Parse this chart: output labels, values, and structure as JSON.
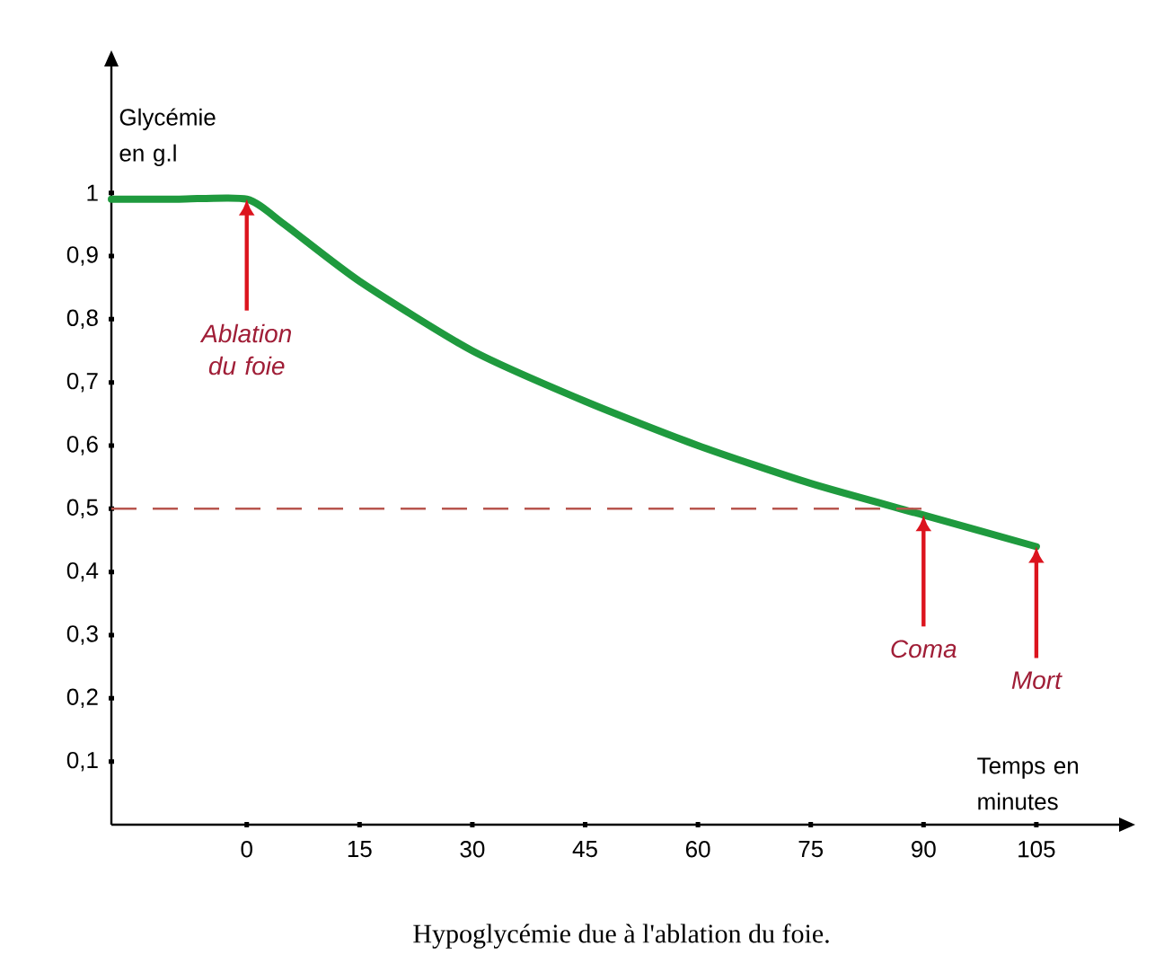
{
  "chart_data": {
    "type": "line",
    "title": "Hypoglycémie due à l'ablation du foie.",
    "xlabel": "Temps en minutes",
    "ylabel": "Glycémie en g.l",
    "x": [
      -18,
      -9,
      0,
      5,
      15,
      30,
      45,
      60,
      75,
      90,
      105
    ],
    "series": [
      {
        "color": "#1f9a3e",
        "values": [
          0.99,
          0.99,
          0.99,
          0.95,
          0.86,
          0.75,
          0.67,
          0.6,
          0.54,
          0.49,
          0.44
        ]
      }
    ],
    "xlim": [
      -18,
      116
    ],
    "ylim": [
      0,
      1.2
    ],
    "xticks": [
      0,
      15,
      30,
      45,
      60,
      75,
      90,
      105
    ],
    "yticks": [
      {
        "value": 0.1,
        "label": "0,1"
      },
      {
        "value": 0.2,
        "label": "0,2"
      },
      {
        "value": 0.3,
        "label": "0,3"
      },
      {
        "value": 0.4,
        "label": "0,4"
      },
      {
        "value": 0.5,
        "label": "0,5"
      },
      {
        "value": 0.6,
        "label": "0,6"
      },
      {
        "value": 0.7,
        "label": "0,7"
      },
      {
        "value": 0.8,
        "label": "0,8"
      },
      {
        "value": 0.9,
        "label": "0,9"
      },
      1
    ],
    "ref_lines": [
      {
        "axis": "y",
        "value": 0.5,
        "color": "#b8564e",
        "line_style": "dashed"
      }
    ],
    "annotations": [
      {
        "text": "Ablation du foie",
        "x": 0,
        "y": 0.99
      },
      {
        "text": "Coma",
        "x": 90,
        "y": 0.49
      },
      {
        "text": "Mort",
        "x": 105,
        "y": 0.44
      }
    ],
    "marker": "none",
    "line_style": "solid",
    "grid": false
  }
}
